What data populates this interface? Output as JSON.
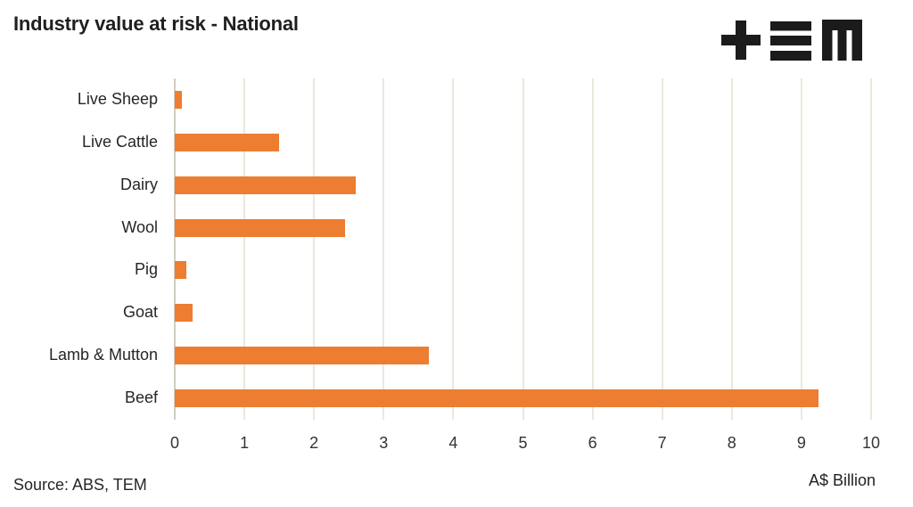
{
  "header": {
    "title": "Industry value at risk - National",
    "logo": "tem-logo"
  },
  "chart_data": {
    "type": "bar",
    "orientation": "horizontal",
    "title": "Industry value at risk - National",
    "categories": [
      "Live Sheep",
      "Live Cattle",
      "Dairy",
      "Wool",
      "Pig",
      "Goat",
      "Lamb & Mutton",
      "Beef"
    ],
    "values": [
      0.1,
      1.5,
      2.6,
      2.45,
      0.17,
      0.26,
      3.65,
      9.25
    ],
    "xlabel": "A$ Billion",
    "xlim": [
      0,
      10
    ],
    "xticks": [
      0,
      1,
      2,
      3,
      4,
      5,
      6,
      7,
      8,
      9,
      10
    ],
    "grid": true,
    "legend": "none"
  },
  "footer": {
    "source": "Source: ABS, TEM",
    "axis_unit": "A$ Billion"
  },
  "colors": {
    "bar": "#ED7D31",
    "gridline": "#EAE8DC",
    "axis_line": "#CFCDC3",
    "title_text": "#1F1F1F",
    "label_text": "#262626",
    "tick_text": "#333333",
    "logo": "#1B1B1B",
    "background": "#FFFFFF"
  }
}
